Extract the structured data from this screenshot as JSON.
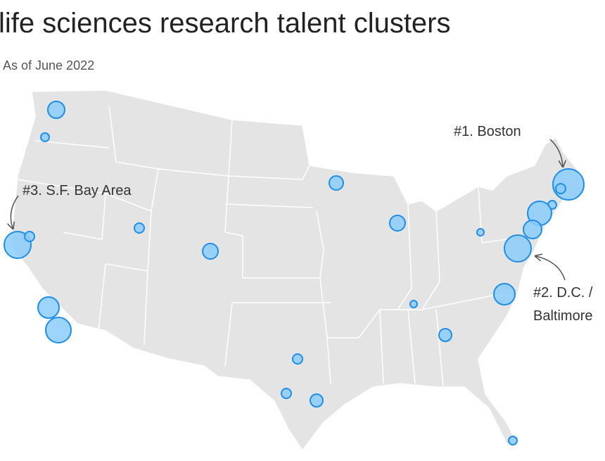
{
  "header": {
    "title": "life sciences research talent clusters",
    "subtitle": "As of June 2022"
  },
  "annotations": [
    {
      "lines": [
        "#1. Boston"
      ]
    },
    {
      "lines": [
        "#2. D.C. /",
        "Baltimore"
      ]
    },
    {
      "lines": [
        "#3. S.F. Bay Area"
      ]
    }
  ]
}
